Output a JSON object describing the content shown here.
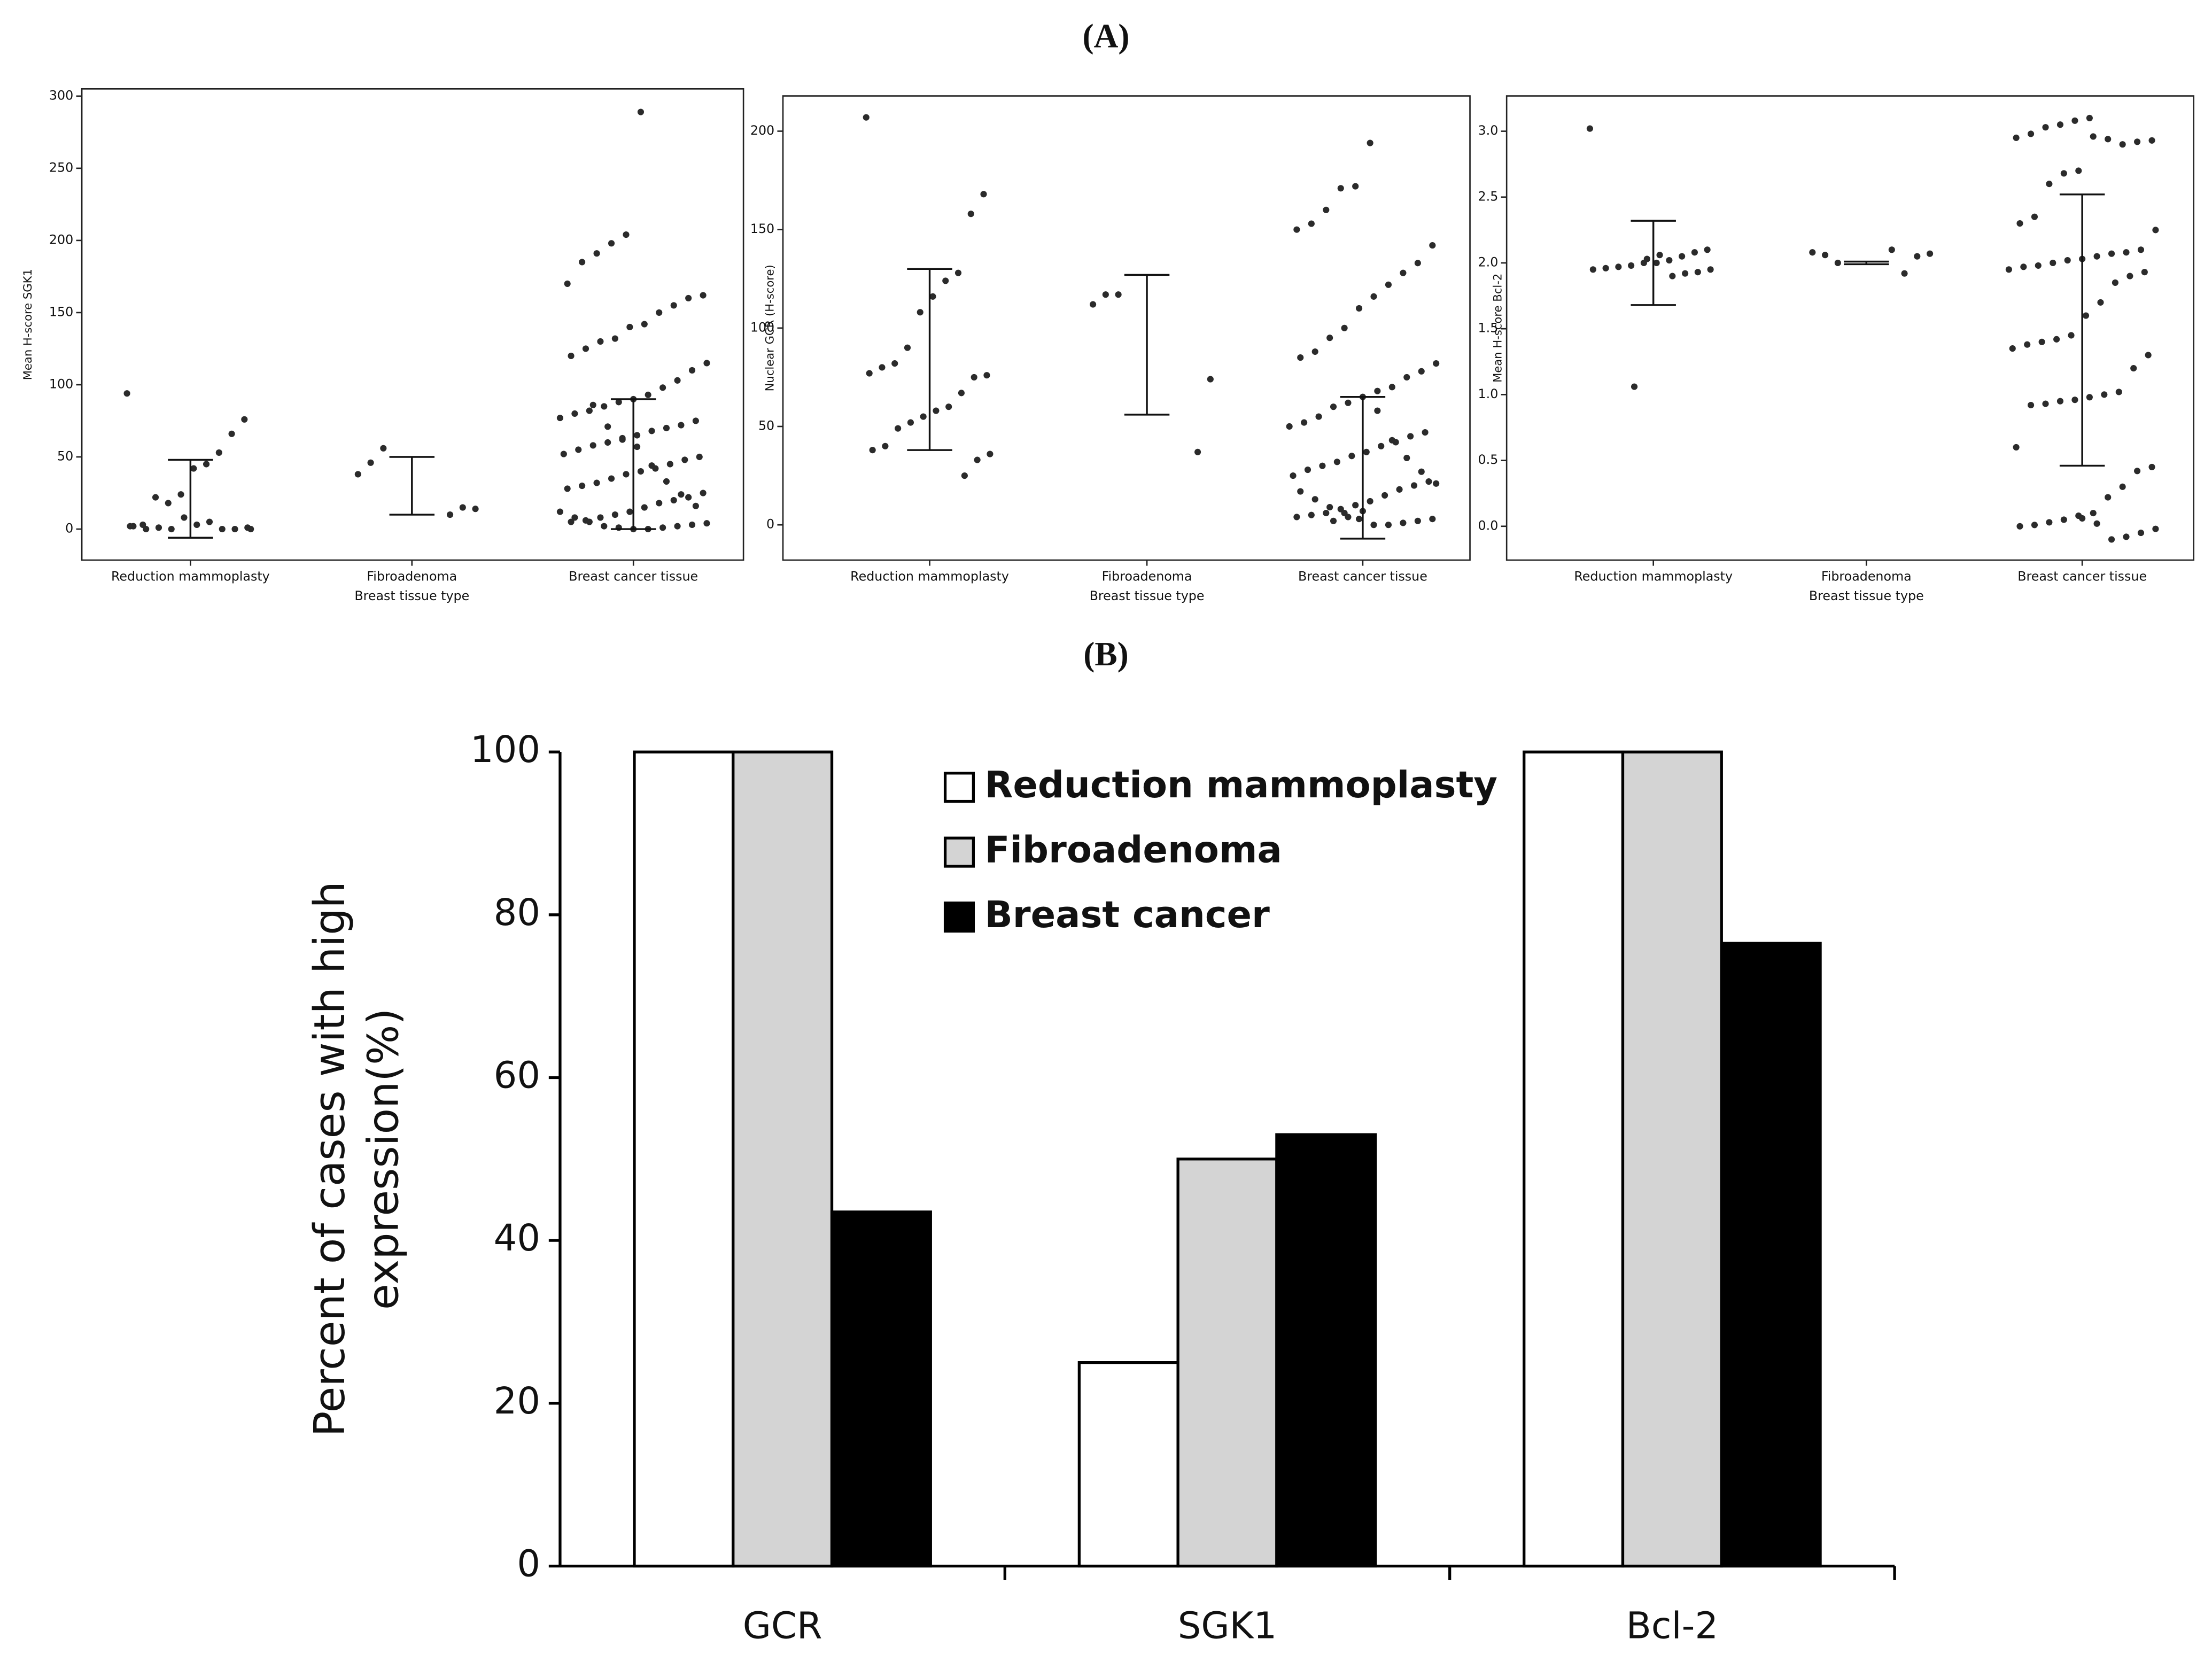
{
  "panel_labels": [
    "(A)",
    "(B)"
  ],
  "chart_data": [
    {
      "type": "strip",
      "ylabel": "Mean H-score SGK1",
      "xlabel": "Breast tissue type",
      "categories": [
        "Reduction mammoplasty",
        "Fibroadenoma",
        "Breast cancer tissue"
      ],
      "color": "#2b2b2b",
      "ylim": [
        -21.5,
        305
      ],
      "yticks": [
        0,
        50,
        100,
        150,
        200,
        250,
        300
      ],
      "groups": [
        [
          94,
          76,
          66,
          53,
          45,
          42,
          24,
          18,
          22,
          3,
          2,
          1,
          0,
          0,
          5,
          3,
          8,
          0,
          1,
          0,
          2,
          0
        ],
        [
          56,
          46,
          38,
          14,
          15,
          10
        ],
        [
          289,
          204,
          198,
          191,
          185,
          170,
          162,
          160,
          155,
          150,
          142,
          140,
          132,
          130,
          125,
          120,
          115,
          110,
          103,
          98,
          93,
          90,
          88,
          85,
          82,
          80,
          77,
          75,
          72,
          70,
          68,
          65,
          62,
          60,
          58,
          55,
          52,
          50,
          48,
          45,
          42,
          40,
          38,
          35,
          32,
          30,
          28,
          25,
          22,
          20,
          18,
          15,
          12,
          10,
          8,
          6,
          5,
          4,
          3,
          2,
          1,
          0,
          0,
          1,
          2,
          5,
          8,
          12,
          16,
          24,
          33,
          44,
          57,
          63,
          71,
          86
        ]
      ],
      "error_bars": [
        {
          "low": -6,
          "high": 48
        },
        {
          "low": 10,
          "high": 50
        },
        {
          "low": 0,
          "high": 90
        }
      ]
    },
    {
      "type": "strip",
      "ylabel": "Nuclear GCR (H-score)",
      "xlabel": "Breast tissue type",
      "categories": [
        "Reduction mammoplasty",
        "Fibroadenoma",
        "Breast cancer tissue"
      ],
      "color": "#2b2b2b",
      "ylim": [
        -17.9,
        217.9
      ],
      "yticks": [
        0,
        50,
        100,
        150,
        200
      ],
      "groups": [
        [
          207,
          168,
          158,
          128,
          124,
          116,
          108,
          90,
          82,
          80,
          77,
          76,
          75,
          67,
          60,
          58,
          55,
          52,
          49,
          40,
          38,
          36,
          33,
          25
        ],
        [
          117,
          117,
          112,
          74,
          37
        ],
        [
          194,
          172,
          171,
          160,
          153,
          150,
          142,
          133,
          128,
          122,
          116,
          110,
          100,
          95,
          88,
          85,
          82,
          78,
          75,
          70,
          68,
          65,
          62,
          60,
          55,
          52,
          50,
          47,
          45,
          42,
          40,
          37,
          35,
          32,
          30,
          28,
          25,
          22,
          20,
          18,
          15,
          12,
          10,
          8,
          6,
          5,
          4,
          3,
          2,
          1,
          0,
          0,
          3,
          6,
          9,
          13,
          17,
          21,
          27,
          34,
          43,
          58,
          7,
          4,
          2
        ]
      ],
      "error_bars": [
        {
          "low": 38,
          "high": 130
        },
        {
          "low": 56,
          "high": 127
        },
        {
          "low": -7,
          "high": 65
        }
      ]
    },
    {
      "type": "strip",
      "ylabel": "Mean H-score Bcl-2",
      "xlabel": "Breast tissue type",
      "categories": [
        "Reduction mammoplasty",
        "Fibroadenoma",
        "Breast cancer tissue"
      ],
      "color": "#2b2b2b",
      "ylim": [
        -0.257,
        3.268
      ],
      "yticks": [
        {
          "value": 0,
          "label": "0.0"
        },
        0.5,
        {
          "value": 1,
          "label": "1.0"
        },
        1.5,
        {
          "value": 2,
          "label": "2.0"
        },
        2.5,
        {
          "value": 3,
          "label": "3.0"
        }
      ],
      "groups": [
        [
          3.02,
          2.1,
          2.08,
          2.05,
          2.02,
          2.0,
          2.0,
          1.98,
          1.97,
          1.96,
          1.95,
          1.95,
          1.93,
          1.92,
          1.9,
          2.06,
          2.03,
          1.06
        ],
        [
          2.0,
          2.06,
          2.08,
          2.07,
          2.05,
          1.92,
          2.1
        ],
        [
          3.1,
          3.08,
          3.05,
          3.03,
          2.98,
          2.95,
          2.93,
          2.92,
          2.9,
          2.94,
          2.96,
          2.7,
          2.68,
          2.6,
          2.35,
          2.3,
          2.25,
          2.1,
          2.08,
          2.07,
          2.05,
          2.03,
          2.02,
          2.0,
          1.98,
          1.97,
          1.95,
          1.93,
          1.9,
          1.85,
          1.7,
          1.6,
          1.45,
          1.42,
          1.4,
          1.38,
          1.35,
          1.3,
          1.2,
          1.02,
          1.0,
          0.98,
          0.96,
          0.95,
          0.93,
          0.92,
          0.6,
          0.45,
          0.42,
          0.3,
          0.22,
          0.1,
          0.08,
          0.05,
          0.03,
          0.01,
          0.0,
          -0.02,
          -0.05,
          -0.08,
          -0.1,
          0.02,
          0.06
        ]
      ],
      "error_bars": [
        {
          "low": 1.68,
          "high": 2.32
        },
        {
          "low": 1.99,
          "high": 2.01
        },
        {
          "low": 0.46,
          "high": 2.52
        }
      ]
    },
    {
      "type": "bar",
      "ylabel": "Percent of cases with high expression(%)",
      "categories": [
        "GCR",
        "SGK1",
        "Bcl-2"
      ],
      "ylim": [
        0,
        100
      ],
      "yticks": [
        0,
        20,
        40,
        60,
        80,
        100
      ],
      "legend": "upper center",
      "series": [
        {
          "name": "Reduction mammoplasty",
          "color": "#ffffff",
          "values": [
            100,
            25,
            100
          ]
        },
        {
          "name": "Fibroadenoma",
          "color": "#d4d4d4",
          "values": [
            100,
            50,
            100
          ]
        },
        {
          "name": "Breast cancer",
          "color": "#000000",
          "values": [
            43.5,
            53,
            76.5
          ]
        }
      ]
    }
  ]
}
